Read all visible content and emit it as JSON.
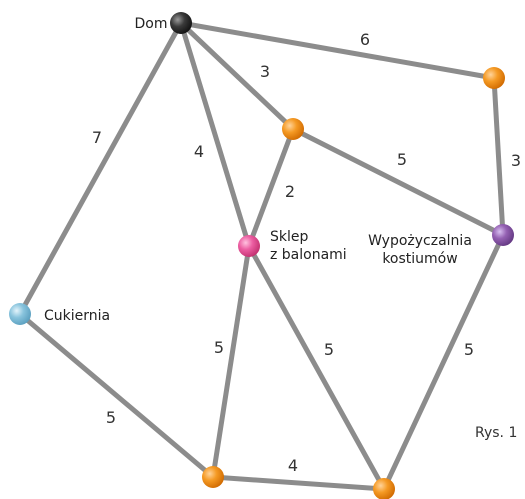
{
  "caption": "Rys. 1",
  "colors": {
    "edge": "#8c8c8c",
    "orange": "#f28a10",
    "black": "#2b2b2b",
    "pink": "#e8559a",
    "purple": "#8e5aa9",
    "blue": "#82bfd9"
  },
  "nodes": {
    "dom": {
      "label": "Dom",
      "color": "black"
    },
    "o1": {
      "label": "",
      "color": "orange"
    },
    "o2": {
      "label": "",
      "color": "orange"
    },
    "sklep": {
      "label": "Sklep\nz balonami",
      "color": "pink"
    },
    "wyp": {
      "label": "Wypożyczalnia\nkostiumów",
      "color": "purple"
    },
    "cuk": {
      "label": "Cukiernia",
      "color": "blue"
    },
    "o3": {
      "label": "",
      "color": "orange"
    },
    "o4": {
      "label": "",
      "color": "orange"
    }
  },
  "edges": [
    {
      "from": "dom",
      "to": "o2",
      "weight": "6"
    },
    {
      "from": "dom",
      "to": "o1",
      "weight": "3"
    },
    {
      "from": "dom",
      "to": "sklep",
      "weight": "4"
    },
    {
      "from": "dom",
      "to": "cuk",
      "weight": "7"
    },
    {
      "from": "o2",
      "to": "wyp",
      "weight": "3"
    },
    {
      "from": "o1",
      "to": "wyp",
      "weight": "5"
    },
    {
      "from": "o1",
      "to": "sklep",
      "weight": "2"
    },
    {
      "from": "sklep",
      "to": "o3",
      "weight": "5"
    },
    {
      "from": "sklep",
      "to": "o4",
      "weight": "5"
    },
    {
      "from": "cuk",
      "to": "o3",
      "weight": "5"
    },
    {
      "from": "o3",
      "to": "o4",
      "weight": "4"
    },
    {
      "from": "wyp",
      "to": "o4",
      "weight": "5"
    }
  ]
}
